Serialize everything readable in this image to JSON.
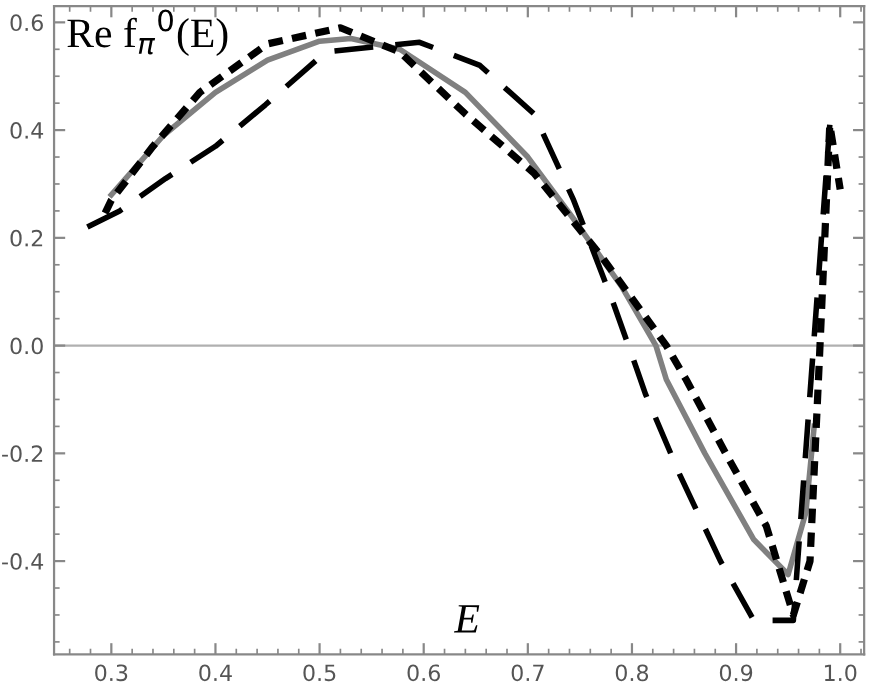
{
  "chart_data": {
    "type": "line",
    "xlabel": "E",
    "ylabel": "Re f$_{π}$$^{0}$(E)",
    "xlim": [
      0.245,
      1.023
    ],
    "ylim": [
      -0.573,
      0.63
    ],
    "xticks": [
      0.3,
      0.4,
      0.5,
      0.6,
      0.7,
      0.8,
      0.9,
      {
        "value": 1,
        "label": "1.0"
      }
    ],
    "yticks": [
      -0.4,
      -0.2,
      {
        "value": 0,
        "label": "0.0"
      },
      0.2,
      0.4,
      0.6
    ],
    "grid": false,
    "legend": false,
    "ref_lines": [
      {
        "axis": "y",
        "value": 0,
        "color": "#b0b0b0",
        "line_style": "solid"
      }
    ],
    "series": [
      {
        "color": "#808080",
        "line_style": "solid",
        "x": [
          0.3,
          0.35,
          0.4,
          0.45,
          0.5,
          0.53,
          0.577,
          0.64,
          0.7,
          0.744,
          0.79,
          0.823,
          0.833,
          0.87,
          0.917,
          0.95,
          0.967,
          0.975
        ],
        "values": [
          0.28,
          0.39,
          0.47,
          0.53,
          0.565,
          0.57,
          0.55,
          0.47,
          0.35,
          0.235,
          0.11,
          0.0,
          -0.063,
          -0.2,
          -0.36,
          -0.425,
          -0.31,
          -0.15
        ]
      },
      {
        "color": "#000000",
        "line_style": "dotted",
        "x": [
          0.294,
          0.3,
          0.34,
          0.385,
          0.45,
          0.52,
          0.577,
          0.64,
          0.706,
          0.769,
          0.833,
          0.852,
          0.89,
          0.929,
          0.955,
          0.971,
          0.98,
          0.99,
          1.0
        ],
        "values": [
          0.246,
          0.27,
          0.37,
          0.47,
          0.56,
          0.59,
          0.545,
          0.43,
          0.32,
          0.17,
          0.0,
          -0.063,
          -0.2,
          -0.335,
          -0.5,
          -0.4,
          -0.026,
          0.41,
          0.29
        ]
      },
      {
        "color": "#000000",
        "line_style": "dashed",
        "x": [
          0.277,
          0.308,
          0.352,
          0.4,
          0.448,
          0.506,
          0.596,
          0.654,
          0.706,
          0.744,
          0.783,
          0.804,
          0.813,
          0.846,
          0.885,
          0.917,
          0.955,
          0.99
        ],
        "values": [
          0.22,
          0.25,
          0.31,
          0.37,
          0.447,
          0.545,
          0.563,
          0.52,
          0.43,
          0.27,
          0.074,
          -0.04,
          -0.09,
          -0.24,
          -0.4,
          -0.51,
          -0.51,
          0.41
        ]
      }
    ]
  }
}
